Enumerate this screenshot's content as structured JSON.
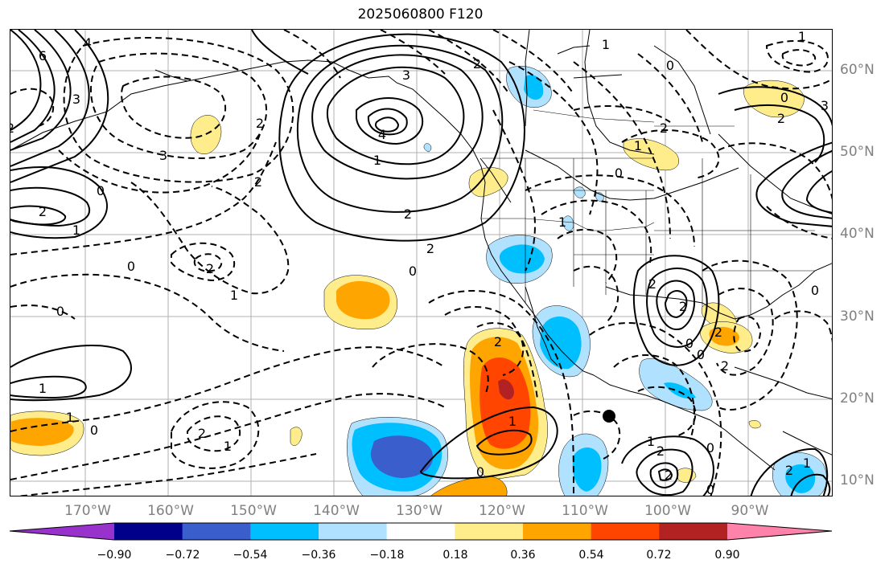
{
  "title": "2025060800 F120",
  "latitude_labels": [
    "60°N",
    "50°N",
    "40°N",
    "30°N",
    "20°N",
    "10°N"
  ],
  "longitude_labels": [
    "170°W",
    "160°W",
    "150°W",
    "140°W",
    "130°W",
    "120°W",
    "110°W",
    "100°W",
    "90°W"
  ],
  "marker": {
    "description": "black dot",
    "lat": 18,
    "lon": -107.5
  },
  "colorbar": {
    "colors": [
      "#9932cc",
      "#00008b",
      "#3a5fcd",
      "#00bfff",
      "#b0e2ff",
      "#ffffff",
      "#ffec8b",
      "#ffa500",
      "#ff4500",
      "#b22222",
      "#ff82ab"
    ],
    "ticks": [
      "−0.90",
      "−0.72",
      "−0.54",
      "−0.36",
      "−0.18",
      "0.18",
      "0.36",
      "0.54",
      "0.72",
      "0.90"
    ],
    "extend": "both"
  },
  "contour_labels": {
    "t6a": "6",
    "t4a": "4",
    "t3a": "3",
    "t2a": "2",
    "t0a": "0",
    "t1a": "1",
    "t2b": "2",
    "t1b": "1",
    "t3b": "3",
    "t2c": "2",
    "t0b": "0",
    "t2d": "2",
    "t1c": "1",
    "t0c": "0",
    "t1d": "1",
    "t4b": "4",
    "t2e": "2",
    "t2f": "2",
    "t1e": "1",
    "t2g": "2",
    "t0d": "0",
    "t1f": "1",
    "t0e": "0",
    "t1g": "1",
    "t0f": "0",
    "t2h": "2",
    "t1h": "1",
    "t2i": "2",
    "t2j": "2",
    "t1i": "1",
    "t0g": "0",
    "t0h": "0",
    "t1j": "1",
    "t0i": "0",
    "t2k": "2",
    "t0j": "0",
    "t2l": "2",
    "t2m": "2",
    "t2n": "2",
    "t0k": "0",
    "t2o": "2",
    "t0l": "0",
    "t2p": "2",
    "t1k": "1",
    "t1l": "1",
    "t2q": "2",
    "t2r": "2",
    "t0m": "0",
    "t0n": "0",
    "t1m": "1",
    "t3c": "3",
    "t2s": "2",
    "t3d": "3",
    "t1n": "1"
  }
}
